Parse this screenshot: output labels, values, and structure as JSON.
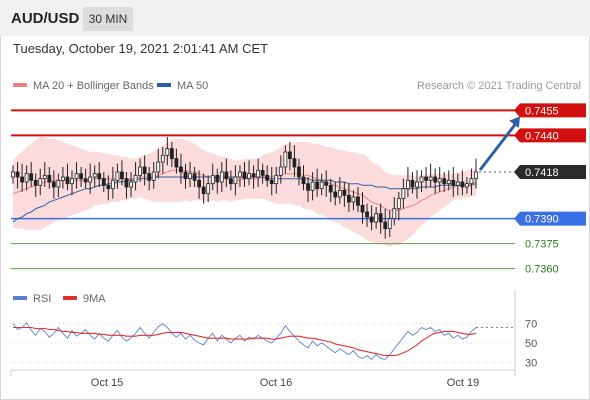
{
  "header": {
    "pair": "AUD/USD",
    "timeframe": "30 MIN"
  },
  "timestamp": "Tuesday, October 19, 2021 2:01:41 AM CET",
  "legend": {
    "bollinger": {
      "label": "MA 20 + Bollinger Bands",
      "color": "#f08080"
    },
    "ma50": {
      "label": "MA 50",
      "color": "#2e5fa6"
    },
    "rsi": {
      "label": "RSI",
      "color": "#5b7fd6"
    },
    "rsi_ma": {
      "label": "9MA",
      "color": "#e03030"
    }
  },
  "credit": "Research © 2021 Trading Central",
  "x_labels": [
    "Oct 15",
    "Oct 16",
    "Oct 19"
  ],
  "chart_data": [
    {
      "type": "candlestick",
      "title": "AUD/USD",
      "ylim": [
        0.7352,
        0.7463
      ],
      "levels": [
        {
          "value": 0.7455,
          "label": "0.7455",
          "kind": "resistance",
          "color": "#d21010"
        },
        {
          "value": 0.744,
          "label": "0.7440",
          "kind": "resistance",
          "color": "#d21010"
        },
        {
          "value": 0.7418,
          "label": "0.7418",
          "kind": "last",
          "color": "#333333"
        },
        {
          "value": 0.739,
          "label": "0.7390",
          "kind": "pivot",
          "color": "#3b6fe6"
        },
        {
          "value": 0.7375,
          "label": "0.7375",
          "kind": "support",
          "color": "#5aa04a"
        },
        {
          "value": 0.736,
          "label": "0.7360",
          "kind": "support",
          "color": "#5aa04a"
        }
      ],
      "close": [
        0.7418,
        0.7415,
        0.7412,
        0.7417,
        0.7413,
        0.741,
        0.7414,
        0.7416,
        0.7412,
        0.7409,
        0.7413,
        0.7415,
        0.7411,
        0.7414,
        0.7417,
        0.7414,
        0.7412,
        0.7415,
        0.7417,
        0.7414,
        0.741,
        0.7408,
        0.7413,
        0.7418,
        0.7414,
        0.7409,
        0.7412,
        0.7416,
        0.7421,
        0.7417,
        0.7413,
        0.7418,
        0.7424,
        0.7428,
        0.7432,
        0.7426,
        0.7421,
        0.7418,
        0.7414,
        0.7417,
        0.7413,
        0.7409,
        0.7405,
        0.7411,
        0.7416,
        0.7412,
        0.7418,
        0.7414,
        0.7411,
        0.7415,
        0.7418,
        0.7414,
        0.7417,
        0.7415,
        0.7419,
        0.7416,
        0.7413,
        0.7411,
        0.7416,
        0.7421,
        0.743,
        0.7426,
        0.7421,
        0.7415,
        0.7411,
        0.7407,
        0.7412,
        0.7408,
        0.7412,
        0.741,
        0.7406,
        0.7403,
        0.7407,
        0.7404,
        0.74,
        0.7403,
        0.7398,
        0.7394,
        0.7391,
        0.7388,
        0.7393,
        0.7388,
        0.7384,
        0.739,
        0.7396,
        0.7402,
        0.7408,
        0.7413,
        0.7409,
        0.7412,
        0.7415,
        0.7413,
        0.7415,
        0.7412,
        0.7414,
        0.7411,
        0.7413,
        0.741,
        0.7412,
        0.7409,
        0.7411,
        0.7414,
        0.7418
      ],
      "ma20": [
        0.7405,
        0.7406,
        0.7407,
        0.7408,
        0.7409,
        0.741,
        0.7411,
        0.7412,
        0.7412,
        0.7413,
        0.7413,
        0.7413,
        0.7413,
        0.7413,
        0.7413,
        0.7413,
        0.7413,
        0.7413,
        0.7414,
        0.7414,
        0.7414,
        0.7414,
        0.7414,
        0.7414,
        0.7414,
        0.7414,
        0.7414,
        0.7414,
        0.7415,
        0.7415,
        0.7415,
        0.7415,
        0.7416,
        0.7417,
        0.7418,
        0.7419,
        0.7419,
        0.7419,
        0.7419,
        0.7418,
        0.7418,
        0.7417,
        0.7416,
        0.7415,
        0.7415,
        0.7414,
        0.7414,
        0.7414,
        0.7413,
        0.7413,
        0.7413,
        0.7414,
        0.7414,
        0.7414,
        0.7414,
        0.7415,
        0.7415,
        0.7415,
        0.7415,
        0.7416,
        0.7417,
        0.7417,
        0.7417,
        0.7417,
        0.7416,
        0.7416,
        0.7415,
        0.7414,
        0.7413,
        0.7412,
        0.7411,
        0.741,
        0.7409,
        0.7408,
        0.7407,
        0.7406,
        0.7405,
        0.7404,
        0.7402,
        0.74,
        0.7399,
        0.7398,
        0.7396,
        0.7395,
        0.7395,
        0.7395,
        0.7396,
        0.7397,
        0.7398,
        0.7399,
        0.7401,
        0.7402,
        0.7404,
        0.7405,
        0.7406,
        0.7407,
        0.7408,
        0.7409,
        0.741,
        0.741,
        0.7411,
        0.7411,
        0.7412
      ],
      "ma50": [
        0.7388,
        0.739,
        0.7391,
        0.7393,
        0.7394,
        0.7396,
        0.7397,
        0.7398,
        0.74,
        0.7401,
        0.7402,
        0.7403,
        0.7404,
        0.7405,
        0.7406,
        0.7407,
        0.7408,
        0.7408,
        0.7409,
        0.741,
        0.741,
        0.7411,
        0.7411,
        0.7412,
        0.7412,
        0.7413,
        0.7413,
        0.7413,
        0.7414,
        0.7414,
        0.7414,
        0.7415,
        0.7415,
        0.7415,
        0.7415,
        0.7415,
        0.7415,
        0.7415,
        0.7415,
        0.7415,
        0.7415,
        0.7415,
        0.7415,
        0.7415,
        0.7415,
        0.7415,
        0.7415,
        0.7415,
        0.7415,
        0.7415,
        0.7415,
        0.7415,
        0.7415,
        0.7415,
        0.7415,
        0.7415,
        0.7414,
        0.7414,
        0.7414,
        0.7414,
        0.7414,
        0.7414,
        0.7414,
        0.7414,
        0.7414,
        0.7414,
        0.7413,
        0.7413,
        0.7413,
        0.7413,
        0.7413,
        0.7412,
        0.7412,
        0.7412,
        0.7411,
        0.7411,
        0.7411,
        0.741,
        0.741,
        0.741,
        0.7409,
        0.7409,
        0.7409,
        0.7408,
        0.7408,
        0.7408,
        0.7408,
        0.7408,
        0.7408,
        0.7408,
        0.7409,
        0.7409,
        0.7409,
        0.7409,
        0.741,
        0.741,
        0.741,
        0.741,
        0.741,
        0.741,
        0.741,
        0.741,
        0.7411
      ],
      "band_width": [
        0.002,
        0.0022,
        0.0023,
        0.0025,
        0.0026,
        0.0027,
        0.0028,
        0.0027,
        0.0026,
        0.0025,
        0.0024,
        0.0023,
        0.0022,
        0.0021,
        0.002,
        0.0019,
        0.0018,
        0.0017,
        0.0016,
        0.0016,
        0.0015,
        0.0015,
        0.0014,
        0.0014,
        0.0013,
        0.0013,
        0.0012,
        0.0012,
        0.0012,
        0.0013,
        0.0014,
        0.0015,
        0.0016,
        0.0017,
        0.0018,
        0.0019,
        0.0019,
        0.0019,
        0.0018,
        0.0018,
        0.0017,
        0.0016,
        0.0015,
        0.0015,
        0.0014,
        0.0014,
        0.0013,
        0.0013,
        0.0013,
        0.0012,
        0.0012,
        0.0012,
        0.0012,
        0.0012,
        0.0012,
        0.0013,
        0.0014,
        0.0015,
        0.0016,
        0.0017,
        0.0018,
        0.0018,
        0.0019,
        0.0019,
        0.002,
        0.002,
        0.002,
        0.0021,
        0.0021,
        0.0021,
        0.0022,
        0.0022,
        0.0022,
        0.0023,
        0.0023,
        0.0024,
        0.0024,
        0.0025,
        0.0025,
        0.0024,
        0.0024,
        0.0023,
        0.0022,
        0.0022,
        0.0021,
        0.0021,
        0.002,
        0.0019,
        0.0018,
        0.0016,
        0.0015,
        0.0014,
        0.0013,
        0.0012,
        0.0011,
        0.001,
        0.0009,
        0.0008,
        0.0008,
        0.0008,
        0.0008,
        0.0008,
        0.0008
      ],
      "forecast": {
        "from": 0.7418,
        "to": 0.7455
      }
    },
    {
      "type": "line",
      "title": "RSI",
      "ylim": [
        20,
        80
      ],
      "ticks": [
        70,
        50,
        30
      ],
      "series": [
        {
          "name": "RSI",
          "color": "#5b7fd6",
          "values": [
            70,
            64,
            66,
            71,
            63,
            58,
            65,
            62,
            56,
            60,
            66,
            60,
            55,
            63,
            57,
            60,
            64,
            58,
            54,
            60,
            55,
            52,
            58,
            63,
            56,
            52,
            55,
            60,
            66,
            60,
            55,
            61,
            67,
            70,
            66,
            60,
            56,
            60,
            54,
            58,
            53,
            50,
            48,
            55,
            60,
            52,
            58,
            54,
            50,
            55,
            58,
            52,
            56,
            54,
            58,
            55,
            52,
            50,
            55,
            60,
            68,
            62,
            57,
            52,
            48,
            45,
            52,
            47,
            50,
            47,
            43,
            40,
            44,
            41,
            38,
            42,
            36,
            34,
            37,
            33,
            38,
            34,
            33,
            38,
            44,
            50,
            56,
            62,
            58,
            61,
            66,
            64,
            66,
            62,
            64,
            58,
            60,
            55,
            58,
            54,
            56,
            62,
            66
          ]
        },
        {
          "name": "9MA",
          "color": "#e03030",
          "values": [
            66,
            66,
            66,
            66,
            66,
            65,
            65,
            65,
            64,
            64,
            63,
            62,
            62,
            61,
            61,
            60,
            60,
            60,
            60,
            59,
            59,
            58,
            58,
            58,
            58,
            57,
            57,
            57,
            58,
            58,
            58,
            58,
            59,
            60,
            61,
            61,
            61,
            61,
            60,
            59,
            58,
            57,
            56,
            55,
            55,
            55,
            55,
            55,
            54,
            54,
            54,
            54,
            54,
            55,
            55,
            55,
            55,
            54,
            54,
            55,
            56,
            57,
            57,
            57,
            56,
            55,
            55,
            54,
            53,
            52,
            51,
            49,
            48,
            47,
            46,
            45,
            43,
            42,
            41,
            40,
            39,
            38,
            37,
            37,
            37,
            38,
            40,
            42,
            45,
            48,
            52,
            55,
            58,
            60,
            61,
            62,
            62,
            62,
            61,
            60,
            59,
            59,
            60
          ]
        }
      ]
    }
  ]
}
